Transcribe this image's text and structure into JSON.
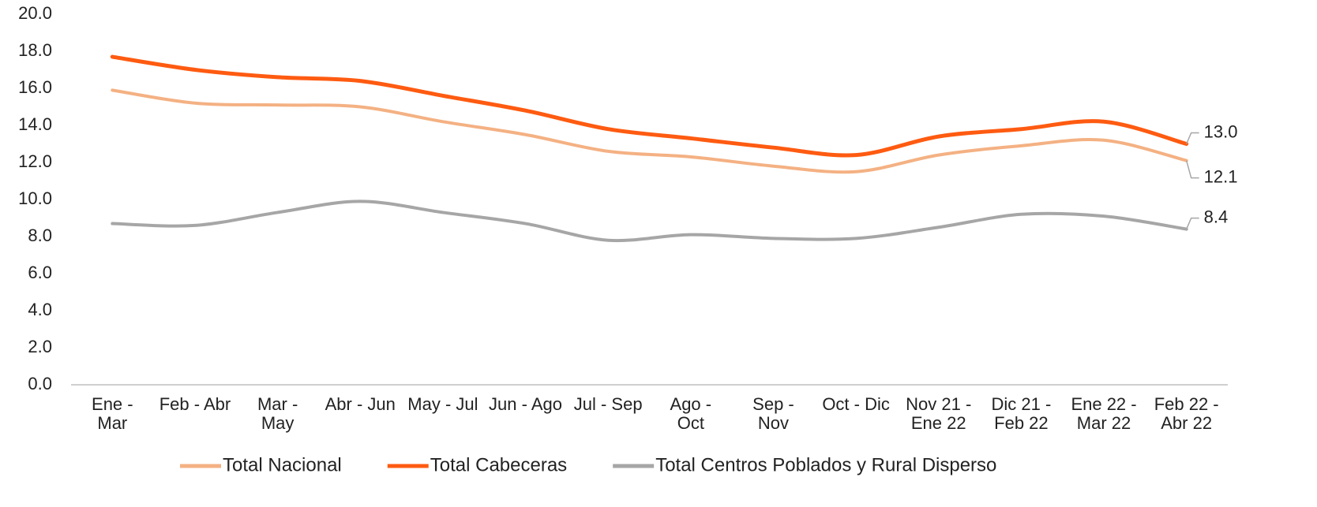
{
  "chart_data": {
    "type": "line",
    "categories": [
      "Ene - Mar",
      "Feb - Abr",
      "Mar - May",
      "Abr - Jun",
      "May - Jul",
      "Jun - Ago",
      "Jul - Sep",
      "Ago - Oct",
      "Sep - Nov",
      "Oct - Dic",
      "Nov 21 - Ene 22",
      "Dic 21 - Feb 22",
      "Ene 22 - Mar 22",
      "Feb 22 - Abr 22"
    ],
    "series": [
      {
        "name": "Total Nacional",
        "color": "#f4b183",
        "values": [
          15.9,
          15.2,
          15.1,
          15.0,
          14.2,
          13.5,
          12.6,
          12.3,
          11.8,
          11.5,
          12.4,
          12.9,
          13.2,
          12.1
        ],
        "value_labels": [
          null,
          null,
          null,
          null,
          null,
          null,
          null,
          null,
          null,
          null,
          null,
          null,
          null,
          "12.1"
        ]
      },
      {
        "name": "Total Cabeceras",
        "color": "#fe5b11",
        "values": [
          17.7,
          17.0,
          16.6,
          16.4,
          15.6,
          14.8,
          13.8,
          13.3,
          12.8,
          12.4,
          13.4,
          13.8,
          14.2,
          13.0
        ],
        "value_labels": [
          null,
          null,
          null,
          null,
          null,
          null,
          null,
          null,
          null,
          null,
          null,
          null,
          null,
          "13.0"
        ]
      },
      {
        "name": "Total Centros Poblados y Rural Disperso",
        "color": "#a6a6a6",
        "values": [
          8.7,
          8.6,
          9.3,
          9.9,
          9.3,
          8.7,
          7.8,
          8.1,
          7.9,
          7.9,
          8.5,
          9.2,
          9.1,
          8.4
        ],
        "value_labels": [
          null,
          null,
          null,
          null,
          null,
          null,
          null,
          null,
          null,
          null,
          null,
          null,
          null,
          "8.4"
        ]
      }
    ],
    "ylim": [
      0,
      20
    ],
    "yticks": [
      {
        "value": 0,
        "label": "0.0"
      },
      {
        "value": 2,
        "label": "2.0"
      },
      {
        "value": 4,
        "label": "4.0"
      },
      {
        "value": 6,
        "label": "6.0"
      },
      {
        "value": 8,
        "label": "8.0"
      },
      {
        "value": 10,
        "label": "10.0"
      },
      {
        "value": 12,
        "label": "12.0"
      },
      {
        "value": 14,
        "label": "14.0"
      },
      {
        "value": 16,
        "label": "16.0"
      },
      {
        "value": 18,
        "label": "18.0"
      },
      {
        "value": 20,
        "label": "20.0"
      }
    ],
    "grid": false,
    "legend": "bottom"
  }
}
